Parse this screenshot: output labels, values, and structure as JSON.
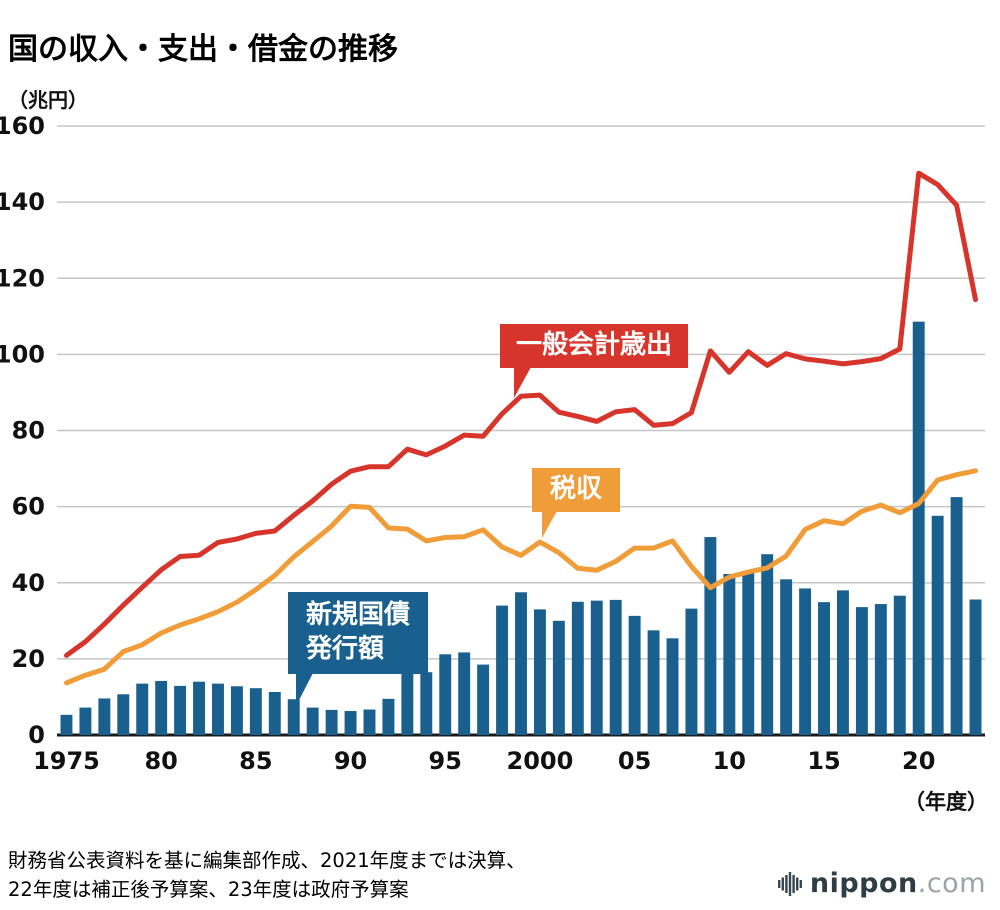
{
  "title": "国の収入・支出・借金の推移",
  "y_unit_label": "（兆円）",
  "x_unit_label": "（年度）",
  "source": {
    "line1": "財務省公表資料を基に編集部作成、2021年度までは決算、",
    "line2": "22年度は補正後予算案、23年度は政府予算案"
  },
  "logo": {
    "name": "nippon",
    "tld": ".com",
    "icon": "soundwave-bars-icon"
  },
  "callouts": {
    "bond_line1": "新規国債",
    "bond_line2": "発行額"
  },
  "colors": {
    "expenditure": "#d7352b",
    "tax": "#f09c38",
    "bond": "#1a608f",
    "grid": "#c6c6c6",
    "axis": "#1a1a1a"
  },
  "chart_data": {
    "type": "bar",
    "subtype": "bar+line combo",
    "title": "国の収入・支出・借金の推移",
    "ylabel": "（兆円）",
    "xlabel": "（年度）",
    "ylim": [
      0,
      160
    ],
    "ytick_step": 20,
    "grid": true,
    "x": [
      1975,
      1976,
      1977,
      1978,
      1979,
      1980,
      1981,
      1982,
      1983,
      1984,
      1985,
      1986,
      1987,
      1988,
      1989,
      1990,
      1991,
      1992,
      1993,
      1994,
      1995,
      1996,
      1997,
      1998,
      1999,
      2000,
      2001,
      2002,
      2003,
      2004,
      2005,
      2006,
      2007,
      2008,
      2009,
      2010,
      2011,
      2012,
      2013,
      2014,
      2015,
      2016,
      2017,
      2018,
      2019,
      2020,
      2021,
      2022,
      2023
    ],
    "xticks": [
      {
        "i": 0,
        "label": "1975"
      },
      {
        "i": 5,
        "label": "80"
      },
      {
        "i": 10,
        "label": "85"
      },
      {
        "i": 15,
        "label": "90"
      },
      {
        "i": 20,
        "label": "95"
      },
      {
        "i": 25,
        "label": "2000"
      },
      {
        "i": 30,
        "label": "05"
      },
      {
        "i": 35,
        "label": "10"
      },
      {
        "i": 40,
        "label": "15"
      },
      {
        "i": 45,
        "label": "20"
      }
    ],
    "series": [
      {
        "name": "一般会計歳出",
        "type": "line",
        "color": "#d7352b",
        "values": [
          20.9,
          24.5,
          29.1,
          34.1,
          38.8,
          43.4,
          46.9,
          47.2,
          50.6,
          51.5,
          53.0,
          53.6,
          57.7,
          61.5,
          65.9,
          69.3,
          70.5,
          70.5,
          75.1,
          73.6,
          75.9,
          78.8,
          78.5,
          84.4,
          89.0,
          89.3,
          84.8,
          83.7,
          82.4,
          84.9,
          85.5,
          81.4,
          81.8,
          84.7,
          100.9,
          95.3,
          100.7,
          97.1,
          100.2,
          98.8,
          98.2,
          97.5,
          98.1,
          98.9,
          101.4,
          147.6,
          144.6,
          139.2,
          114.4
        ]
      },
      {
        "name": "税収",
        "type": "line",
        "color": "#f09c38",
        "values": [
          13.7,
          15.7,
          17.3,
          21.9,
          23.7,
          26.8,
          28.9,
          30.5,
          32.4,
          34.9,
          38.2,
          41.9,
          46.8,
          50.8,
          54.9,
          60.1,
          59.8,
          54.4,
          54.1,
          51.0,
          51.9,
          52.1,
          53.9,
          49.4,
          47.2,
          50.7,
          47.9,
          43.8,
          43.3,
          45.6,
          49.1,
          49.1,
          51.0,
          44.3,
          38.7,
          41.5,
          42.8,
          43.9,
          47.0,
          54.0,
          56.3,
          55.5,
          58.8,
          60.4,
          58.4,
          60.8,
          67.0,
          68.4,
          69.4
        ]
      },
      {
        "name": "新規国債発行額",
        "type": "bar",
        "color": "#1a608f",
        "values": [
          5.3,
          7.2,
          9.6,
          10.7,
          13.5,
          14.2,
          12.9,
          14.0,
          13.5,
          12.8,
          12.3,
          11.3,
          9.4,
          7.2,
          6.6,
          6.3,
          6.7,
          9.5,
          16.2,
          16.5,
          21.2,
          21.7,
          18.5,
          34.0,
          37.5,
          33.0,
          30.0,
          35.0,
          35.3,
          35.5,
          31.3,
          27.5,
          25.4,
          33.2,
          52.0,
          42.3,
          42.8,
          47.5,
          40.9,
          38.5,
          34.9,
          38.0,
          33.6,
          34.4,
          36.6,
          108.6,
          57.6,
          62.5,
          35.6
        ]
      }
    ],
    "legend_position": "inline-callouts"
  }
}
